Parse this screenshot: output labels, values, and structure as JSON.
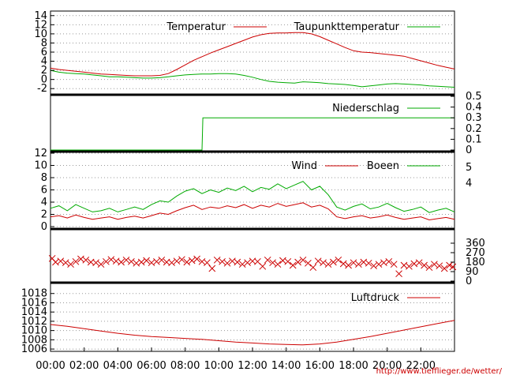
{
  "chart_data": [
    {
      "type": "line",
      "panel": "temperature",
      "title": "",
      "xlabel": "",
      "ylabel": "",
      "ylim": [
        -3,
        15
      ],
      "yticks": [
        -2,
        0,
        2,
        4,
        6,
        8,
        10,
        12,
        14
      ],
      "ytick_side": "left",
      "grid": true,
      "legend_placement": "top-right",
      "x": [
        0,
        0.5,
        1,
        1.5,
        2,
        2.5,
        3,
        3.5,
        4,
        4.5,
        5,
        5.5,
        6,
        6.5,
        7,
        7.5,
        8,
        8.5,
        9,
        9.5,
        10,
        10.5,
        11,
        11.5,
        12,
        12.5,
        13,
        13.5,
        14,
        14.5,
        15,
        15.5,
        16,
        16.5,
        17,
        17.5,
        18,
        18.5,
        19,
        19.5,
        20,
        20.5,
        21,
        21.5,
        22,
        22.5,
        23,
        23.5,
        24
      ],
      "series": [
        {
          "name": "Temperatur",
          "color": "#cc0000",
          "values": [
            2.5,
            2.2,
            2.0,
            1.8,
            1.6,
            1.4,
            1.2,
            1.1,
            1.0,
            0.9,
            0.8,
            0.8,
            0.8,
            0.9,
            1.3,
            2.2,
            3.2,
            4.2,
            5.0,
            5.8,
            6.5,
            7.2,
            7.9,
            8.6,
            9.3,
            9.8,
            10.1,
            10.2,
            10.2,
            10.3,
            10.3,
            10.0,
            9.4,
            8.6,
            7.8,
            7.0,
            6.3,
            6.0,
            5.9,
            5.7,
            5.5,
            5.3,
            5.1,
            4.6,
            4.1,
            3.6,
            3.1,
            2.7,
            2.3
          ]
        },
        {
          "name": "Taupunkttemperatur",
          "color": "#00aa00",
          "values": [
            2.0,
            1.6,
            1.4,
            1.3,
            1.2,
            1.0,
            0.8,
            0.6,
            0.6,
            0.5,
            0.4,
            0.3,
            0.3,
            0.4,
            0.6,
            0.8,
            1.0,
            1.1,
            1.2,
            1.2,
            1.3,
            1.3,
            1.2,
            0.9,
            0.5,
            0.0,
            -0.4,
            -0.6,
            -0.7,
            -0.8,
            -0.5,
            -0.6,
            -0.7,
            -0.9,
            -1.0,
            -1.1,
            -1.3,
            -1.6,
            -1.4,
            -1.2,
            -1.0,
            -0.9,
            -1.0,
            -1.1,
            -1.2,
            -1.4,
            -1.5,
            -1.6,
            -1.7
          ]
        }
      ]
    },
    {
      "type": "line",
      "panel": "precipitation",
      "title": "",
      "ylim": [
        0,
        0.5
      ],
      "yticks": [
        0,
        0.1,
        0.2,
        0.3,
        0.4,
        0.5
      ],
      "ytick_side": "right",
      "legend_placement": "top-right",
      "x": [
        0,
        9.0,
        9.05,
        24
      ],
      "series": [
        {
          "name": "Niederschlag",
          "color": "#00aa00",
          "values": [
            0,
            0,
            0.3,
            0.3
          ]
        }
      ]
    },
    {
      "type": "line",
      "panel": "wind",
      "title": "",
      "ylim": [
        0,
        12
      ],
      "yticks": [
        0,
        2,
        4,
        6,
        8,
        10,
        12
      ],
      "ytick_side": "left",
      "right_ticks": [
        "4",
        "5"
      ],
      "grid": true,
      "legend_placement": "top-right",
      "x": [
        0,
        0.5,
        1,
        1.5,
        2,
        2.5,
        3,
        3.5,
        4,
        4.5,
        5,
        5.5,
        6,
        6.5,
        7,
        7.5,
        8,
        8.5,
        9,
        9.5,
        10,
        10.5,
        11,
        11.5,
        12,
        12.5,
        13,
        13.5,
        14,
        14.5,
        15,
        15.5,
        16,
        16.5,
        17,
        17.5,
        18,
        18.5,
        19,
        19.5,
        20,
        20.5,
        21,
        21.5,
        22,
        22.5,
        23,
        23.5,
        24
      ],
      "series": [
        {
          "name": "Wind",
          "color": "#cc0000",
          "values": [
            1.6,
            1.8,
            1.4,
            1.9,
            1.5,
            1.2,
            1.4,
            1.6,
            1.2,
            1.5,
            1.7,
            1.4,
            1.8,
            2.2,
            2.0,
            2.6,
            3.1,
            3.5,
            2.8,
            3.2,
            3.0,
            3.4,
            3.1,
            3.6,
            3.0,
            3.5,
            3.2,
            3.8,
            3.3,
            3.6,
            3.9,
            3.2,
            3.5,
            2.9,
            1.6,
            1.3,
            1.6,
            1.8,
            1.4,
            1.6,
            1.9,
            1.5,
            1.2,
            1.4,
            1.6,
            1.1,
            1.3,
            1.5,
            1.2
          ]
        },
        {
          "name": "Boeen",
          "color": "#00aa00",
          "values": [
            3.0,
            3.4,
            2.6,
            3.6,
            3.0,
            2.4,
            2.6,
            3.0,
            2.4,
            2.8,
            3.2,
            2.8,
            3.6,
            4.2,
            4.0,
            5.0,
            5.8,
            6.2,
            5.4,
            6.0,
            5.6,
            6.3,
            5.9,
            6.6,
            5.7,
            6.4,
            6.1,
            7.0,
            6.2,
            6.8,
            7.4,
            6.0,
            6.6,
            5.2,
            3.2,
            2.7,
            3.3,
            3.7,
            2.9,
            3.2,
            3.8,
            3.1,
            2.5,
            2.8,
            3.2,
            2.3,
            2.7,
            3.0,
            2.4
          ]
        }
      ]
    },
    {
      "type": "scatter",
      "panel": "wind-direction",
      "title": "",
      "ylim": [
        0,
        360
      ],
      "yticks": [
        0,
        90,
        180,
        270,
        360
      ],
      "ytick_side": "right",
      "series": [
        {
          "name": "",
          "color": "#cc0000",
          "marker": "x",
          "x": [
            0.1,
            0.3,
            0.6,
            0.9,
            1.2,
            1.5,
            1.8,
            2.1,
            2.4,
            2.7,
            3.0,
            3.3,
            3.6,
            3.9,
            4.2,
            4.5,
            4.8,
            5.1,
            5.4,
            5.7,
            6.0,
            6.3,
            6.6,
            6.9,
            7.2,
            7.5,
            7.8,
            8.1,
            8.4,
            8.7,
            9.0,
            9.3,
            9.6,
            9.9,
            10.2,
            10.5,
            10.8,
            11.1,
            11.4,
            11.7,
            12.0,
            12.3,
            12.6,
            12.9,
            13.2,
            13.5,
            13.8,
            14.1,
            14.4,
            14.7,
            15.0,
            15.3,
            15.6,
            15.9,
            16.2,
            16.5,
            16.8,
            17.1,
            17.4,
            17.7,
            18.0,
            18.3,
            18.6,
            18.9,
            19.2,
            19.5,
            19.8,
            20.1,
            20.4,
            20.7,
            21.0,
            21.3,
            21.6,
            21.9,
            22.2,
            22.5,
            22.8,
            23.1,
            23.4,
            23.7,
            23.9
          ],
          "values": [
            215,
            180,
            190,
            175,
            160,
            185,
            210,
            200,
            180,
            175,
            160,
            185,
            205,
            190,
            180,
            200,
            185,
            170,
            180,
            195,
            175,
            185,
            200,
            180,
            175,
            190,
            205,
            180,
            195,
            210,
            185,
            175,
            120,
            200,
            185,
            170,
            190,
            180,
            160,
            175,
            190,
            185,
            140,
            200,
            175,
            160,
            195,
            185,
            150,
            180,
            200,
            170,
            130,
            190,
            175,
            160,
            180,
            200,
            165,
            150,
            175,
            160,
            180,
            170,
            145,
            160,
            175,
            185,
            160,
            70,
            150,
            140,
            165,
            175,
            150,
            130,
            160,
            145,
            120,
            150,
            135
          ]
        }
      ]
    },
    {
      "type": "line",
      "panel": "pressure",
      "title": "",
      "ylim": [
        1005.5,
        1020
      ],
      "yticks": [
        1006,
        1008,
        1010,
        1012,
        1014,
        1016,
        1018
      ],
      "ytick_side": "left",
      "grid": true,
      "legend_placement": "top-right",
      "x": [
        0,
        1,
        2,
        3,
        4,
        5,
        6,
        7,
        8,
        9,
        10,
        11,
        12,
        13,
        14,
        15,
        16,
        17,
        18,
        19,
        20,
        21,
        22,
        23,
        24
      ],
      "series": [
        {
          "name": "Luftdruck",
          "color": "#cc0000",
          "values": [
            1011.3,
            1010.9,
            1010.4,
            1009.9,
            1009.4,
            1009.0,
            1008.7,
            1008.5,
            1008.3,
            1008.1,
            1007.8,
            1007.5,
            1007.3,
            1007.1,
            1007.0,
            1006.9,
            1007.1,
            1007.5,
            1008.1,
            1008.7,
            1009.4,
            1010.1,
            1010.8,
            1011.5,
            1012.2
          ]
        }
      ]
    }
  ],
  "x_axis": {
    "range": [
      0,
      24
    ],
    "tick_labels": [
      "00:00",
      "02:00",
      "04:00",
      "06:00",
      "08:00",
      "10:00",
      "12:00",
      "14:00",
      "16:00",
      "18:00",
      "20:00",
      "22:00"
    ]
  },
  "credit": "http://www.tiefflieger.de/wetter/"
}
